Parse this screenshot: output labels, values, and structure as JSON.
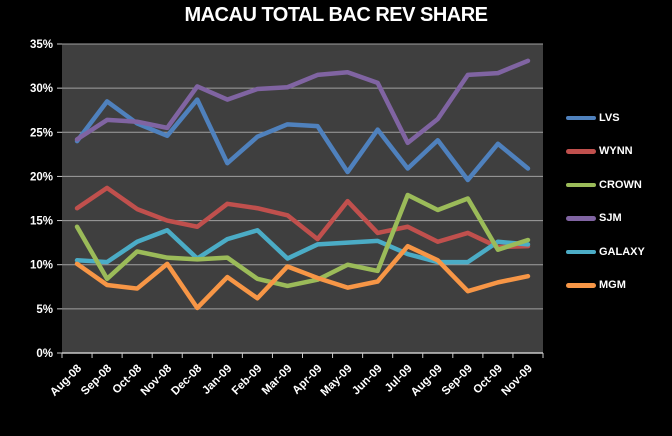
{
  "title": "MACAU TOTAL BAC REV SHARE",
  "colors": {
    "background": "#000000",
    "plot_background": "#3F3F3F",
    "gridline": "#A0A0A0",
    "axis_line": "#C8C8C8",
    "text": "#FFFFFF"
  },
  "chart_data": {
    "type": "line",
    "title": "MACAU TOTAL BAC REV SHARE",
    "xlabel": "",
    "ylabel": "",
    "ylim": [
      0,
      35
    ],
    "ytick_labels": [
      "0%",
      "5%",
      "10%",
      "15%",
      "20%",
      "25%",
      "30%",
      "35%"
    ],
    "grid": true,
    "legend_position": "right",
    "categories": [
      "Aug-08",
      "Sep-08",
      "Oct-08",
      "Nov-08",
      "Dec-08",
      "Jan-09",
      "Feb-09",
      "Mar-09",
      "Apr-09",
      "May-09",
      "Jun-09",
      "Jul-09",
      "Aug-09",
      "Sep-09",
      "Oct-09",
      "Nov-09"
    ],
    "series": [
      {
        "name": "LVS",
        "color": "#4F81BD",
        "values": [
          24.0,
          28.5,
          26.0,
          24.6,
          28.7,
          21.5,
          24.5,
          25.9,
          25.7,
          20.5,
          25.3,
          20.9,
          24.1,
          19.6,
          23.7,
          20.9
        ]
      },
      {
        "name": "WYNN",
        "color": "#C0504D",
        "values": [
          16.4,
          18.7,
          16.3,
          15.0,
          14.3,
          16.9,
          16.4,
          15.6,
          12.9,
          17.2,
          13.6,
          14.3,
          12.6,
          13.6,
          12.0,
          12.1
        ]
      },
      {
        "name": "CROWN",
        "color": "#9BBB59",
        "values": [
          14.3,
          8.4,
          11.5,
          10.8,
          10.6,
          10.8,
          8.4,
          7.6,
          8.3,
          10.0,
          9.3,
          17.9,
          16.2,
          17.5,
          11.7,
          12.8
        ]
      },
      {
        "name": "SJM",
        "color": "#8064A2",
        "values": [
          24.2,
          26.4,
          26.2,
          25.5,
          30.2,
          28.7,
          29.9,
          30.1,
          31.5,
          31.8,
          30.6,
          23.8,
          26.5,
          31.5,
          31.7,
          33.1
        ]
      },
      {
        "name": "GALAXY",
        "color": "#4BACC6",
        "values": [
          10.5,
          10.3,
          12.6,
          13.9,
          10.7,
          12.9,
          13.9,
          10.7,
          12.3,
          12.5,
          12.7,
          11.2,
          10.3,
          10.3,
          12.6,
          12.3
        ]
      },
      {
        "name": "MGM",
        "color": "#F79646",
        "values": [
          10.1,
          7.7,
          7.3,
          10.1,
          5.1,
          8.6,
          6.2,
          9.8,
          8.5,
          7.4,
          8.1,
          12.1,
          10.5,
          7.0,
          8.0,
          8.7
        ]
      }
    ]
  }
}
